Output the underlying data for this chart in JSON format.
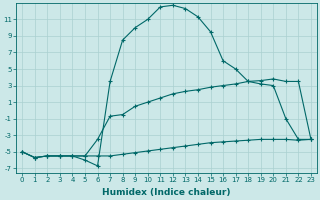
{
  "line1_x": [
    0,
    1,
    2,
    3,
    4,
    5,
    6,
    7,
    8,
    9,
    10,
    11,
    12,
    13,
    14,
    15,
    16,
    17,
    18,
    19,
    20,
    21,
    22,
    23
  ],
  "line1_y": [
    -5,
    -5.7,
    -5.5,
    -5.5,
    -5.5,
    -6,
    -6.7,
    3.5,
    8.5,
    10,
    11,
    12.5,
    12.7,
    12.3,
    11.3,
    9.5,
    6,
    5,
    3.5,
    3.2,
    3.0,
    -1.0,
    -3.5,
    -3.5
  ],
  "line2_x": [
    0,
    1,
    2,
    3,
    4,
    5,
    6,
    7,
    8,
    9,
    10,
    11,
    12,
    13,
    14,
    15,
    16,
    17,
    18,
    19,
    20,
    21,
    22,
    23
  ],
  "line2_y": [
    -5,
    -5.7,
    -5.5,
    -5.5,
    -5.5,
    -5.5,
    -3.5,
    -0.7,
    -0.5,
    0.5,
    1.0,
    1.5,
    2.0,
    2.3,
    2.5,
    2.8,
    3.0,
    3.2,
    3.5,
    3.6,
    3.8,
    3.5,
    3.5,
    -3.5
  ],
  "line3_x": [
    0,
    1,
    2,
    3,
    4,
    5,
    6,
    7,
    8,
    9,
    10,
    11,
    12,
    13,
    14,
    15,
    16,
    17,
    18,
    19,
    20,
    21,
    22,
    23
  ],
  "line3_y": [
    -5,
    -5.7,
    -5.5,
    -5.5,
    -5.5,
    -5.5,
    -5.5,
    -5.5,
    -5.3,
    -5.1,
    -4.9,
    -4.7,
    -4.5,
    -4.3,
    -4.1,
    -3.9,
    -3.8,
    -3.7,
    -3.6,
    -3.5,
    -3.5,
    -3.5,
    -3.6,
    -3.5
  ],
  "line_color": "#006868",
  "bg_color": "#cce8e8",
  "grid_color": "#aad0d0",
  "xlabel": "Humidex (Indice chaleur)",
  "ylim": [
    -7.5,
    13.0
  ],
  "xlim": [
    -0.5,
    23.5
  ],
  "yticks": [
    -7,
    -5,
    -3,
    -1,
    1,
    3,
    5,
    7,
    9,
    11
  ],
  "xticks": [
    0,
    1,
    2,
    3,
    4,
    5,
    6,
    7,
    8,
    9,
    10,
    11,
    12,
    13,
    14,
    15,
    16,
    17,
    18,
    19,
    20,
    21,
    22,
    23
  ],
  "tick_fontsize": 5.0,
  "xlabel_fontsize": 6.5
}
